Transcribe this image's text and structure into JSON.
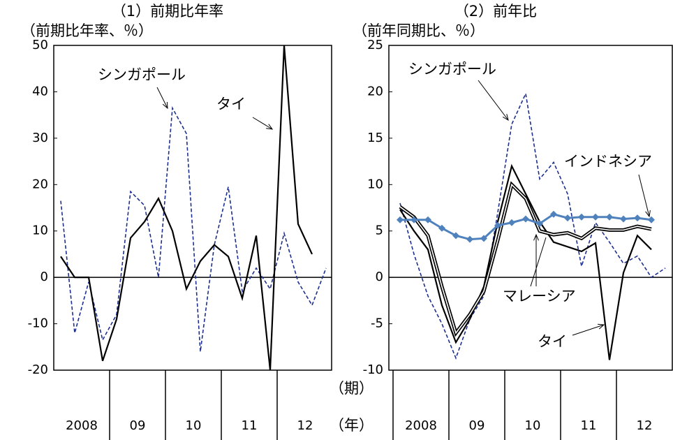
{
  "chart_data": [
    {
      "type": "line",
      "title": "（1）前期比年率",
      "ylabel": "（前期比年率、％）",
      "categories": [
        null,
        null,
        null,
        null,
        null,
        null,
        null,
        null,
        null,
        null,
        null,
        null,
        null,
        null,
        null,
        null,
        null,
        null,
        null,
        null
      ],
      "year_labels": [
        "2008",
        "09",
        "10",
        "11",
        "12"
      ],
      "ylim": [
        -20,
        50
      ],
      "yticks": [
        -20,
        -10,
        0,
        10,
        20,
        30,
        40,
        50
      ],
      "series": [
        {
          "name": "シンガポール",
          "color": "#1c2f8f",
          "line_style": "dashed",
          "values": [
            16.5,
            -12,
            -1,
            -13.5,
            -8,
            18.5,
            15.5,
            0,
            36.5,
            31,
            -16,
            7,
            19.5,
            -3,
            2,
            -2.5,
            9.5,
            -1,
            -6,
            2
          ]
        },
        {
          "name": "タイ",
          "color": "#000000",
          "line_style": "solid",
          "values": [
            4.5,
            0,
            0,
            -18,
            -9,
            8.5,
            12,
            17,
            10,
            -2.5,
            3.5,
            7,
            4.5,
            -4.5,
            9,
            -20,
            50,
            11.5,
            5,
            null
          ]
        }
      ],
      "annotations": [
        {
          "text": "シンガポール"
        },
        {
          "text": "タイ"
        }
      ]
    },
    {
      "type": "line",
      "title": "（2）前年比",
      "ylabel": "（前年同期比、％）",
      "categories": [
        null,
        null,
        null,
        null,
        null,
        null,
        null,
        null,
        null,
        null,
        null,
        null,
        null,
        null,
        null,
        null,
        null,
        null,
        null,
        null
      ],
      "year_labels": [
        "2008",
        "09",
        "10",
        "11",
        "12"
      ],
      "ylim": [
        -10,
        25
      ],
      "yticks": [
        -10,
        -5,
        0,
        5,
        10,
        15,
        20,
        25
      ],
      "series": [
        {
          "name": "シンガポール",
          "color": "#1c2f8f",
          "line_style": "dashed",
          "values": [
            8,
            2.5,
            -2,
            -5,
            -8.7,
            -4.5,
            -2,
            7,
            16.5,
            19.8,
            10.6,
            12.4,
            9,
            1.2,
            5.9,
            3.8,
            1.5,
            2.3,
            0,
            1
          ]
        },
        {
          "name": "タイ",
          "color": "#000000",
          "line_style": "solid",
          "values": [
            7.3,
            5,
            3,
            -3,
            -7,
            -4.5,
            -1,
            6,
            12,
            9,
            6,
            3.8,
            3.3,
            2.8,
            3.7,
            -8.9,
            0.5,
            4.5,
            3,
            null
          ]
        },
        {
          "name": "マレーシア",
          "color": "#000000",
          "line_style": "double",
          "values": [
            7.6,
            6.5,
            4.5,
            -1,
            -6,
            -4,
            -1.5,
            4,
            10,
            8.5,
            5,
            4.6,
            4.8,
            4.2,
            5.3,
            5.1,
            5.1,
            5.5,
            5.2,
            null
          ]
        },
        {
          "name": "インドネシア",
          "color": "#4f81bd",
          "line_style": "marker",
          "values": [
            6.2,
            6.2,
            6.2,
            5.3,
            4.5,
            4.1,
            4.2,
            5.6,
            5.9,
            6.3,
            5.8,
            6.8,
            6.4,
            6.5,
            6.5,
            6.5,
            6.3,
            6.4,
            6.2,
            null
          ]
        }
      ],
      "annotations": [
        {
          "text": "シンガポール"
        },
        {
          "text": "インドネシア"
        },
        {
          "text": "マレーシア"
        },
        {
          "text": "タイ"
        }
      ]
    }
  ],
  "period_label": "（期）",
  "year_label": "（年）"
}
